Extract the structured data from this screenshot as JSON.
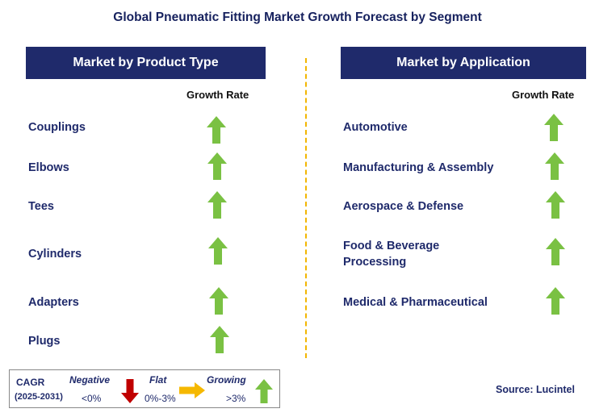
{
  "title": "Global Pneumatic Fitting Market Growth Forecast by Segment",
  "left_panel": {
    "header": "Market by Product Type",
    "growth_label": "Growth Rate",
    "rows": [
      {
        "label": "Couplings",
        "trend": "growing"
      },
      {
        "label": "Elbows",
        "trend": "growing"
      },
      {
        "label": "Tees",
        "trend": "growing"
      },
      {
        "label": "Cylinders",
        "trend": "growing"
      },
      {
        "label": "Adapters",
        "trend": "growing"
      },
      {
        "label": "Plugs",
        "trend": "growing"
      }
    ]
  },
  "right_panel": {
    "header": "Market by Application",
    "growth_label": "Growth Rate",
    "rows": [
      {
        "label": "Automotive",
        "trend": "growing"
      },
      {
        "label": "Manufacturing & Assembly",
        "trend": "growing"
      },
      {
        "label": "Aerospace & Defense",
        "trend": "growing"
      },
      {
        "label": "Food & Beverage Processing",
        "label_line1": "Food & Beverage",
        "label_line2": "Processing",
        "trend": "growing"
      },
      {
        "label": "Medical & Pharmaceutical",
        "trend": "growing"
      }
    ]
  },
  "legend": {
    "cagr_label": "CAGR",
    "period": "(2025-2031)",
    "negative": {
      "label": "Negative",
      "range": "<0%"
    },
    "flat": {
      "label": "Flat",
      "range": "0%-3%"
    },
    "growing": {
      "label": "Growing",
      "range": ">3%"
    }
  },
  "source": "Source: Lucintel",
  "colors": {
    "header_bg": "#1f2a6b",
    "growing_arrow": "#7ac143",
    "negative_arrow": "#c00000",
    "flat_arrow": "#f5b800",
    "divider": "#f2b600"
  }
}
